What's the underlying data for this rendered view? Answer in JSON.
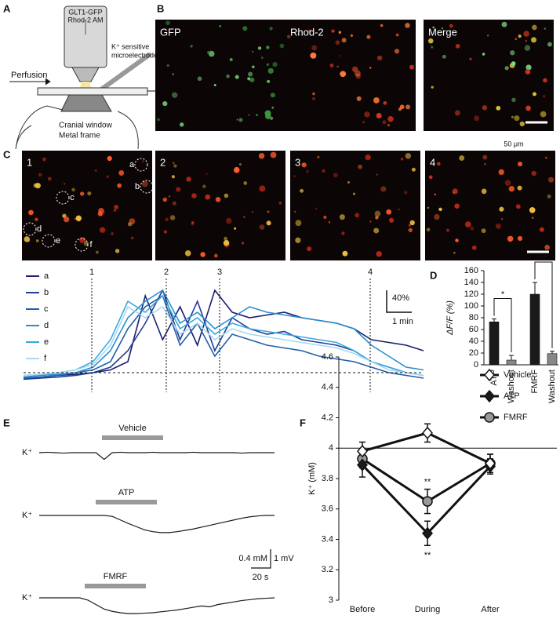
{
  "panel_labels": [
    "A",
    "B",
    "C",
    "D",
    "E",
    "F"
  ],
  "schematic": {
    "dyes": [
      "GLT1-GFP",
      "Rhod-2 AM"
    ],
    "electrode": [
      "K⁺ sensitive",
      "microelectrode"
    ],
    "perfusion": "Perfusion",
    "window": "Cranial window",
    "frame": "Metal frame"
  },
  "imaging": {
    "channels": [
      "GFP",
      "Rhod-2",
      "Merge"
    ],
    "scale": "50 μm",
    "frames": [
      "1",
      "2",
      "3",
      "4"
    ]
  },
  "chart_data": [
    {
      "type": "line",
      "series": [
        {
          "name": "a",
          "color": "#1a1f6e",
          "values": [
            -10,
            -8,
            -5,
            -3,
            0,
            5,
            20,
            140,
            60,
            120,
            50,
            150,
            110,
            100,
            105,
            110,
            100,
            95,
            90,
            80,
            60,
            55,
            50,
            40
          ]
        },
        {
          "name": "b",
          "color": "#243c96",
          "values": [
            -12,
            -10,
            -8,
            -5,
            0,
            10,
            40,
            90,
            150,
            60,
            130,
            40,
            100,
            80,
            70,
            75,
            60,
            55,
            50,
            40,
            20,
            10,
            0,
            -5
          ]
        },
        {
          "name": "c",
          "color": "#1f5fa8",
          "values": [
            -10,
            -8,
            -5,
            0,
            5,
            20,
            80,
            120,
            140,
            50,
            90,
            30,
            70,
            60,
            50,
            45,
            40,
            30,
            25,
            20,
            10,
            0,
            -5,
            -10
          ]
        },
        {
          "name": "d",
          "color": "#2a8fd0",
          "values": [
            -8,
            -5,
            -3,
            0,
            10,
            40,
            100,
            130,
            150,
            90,
            110,
            80,
            100,
            120,
            110,
            105,
            100,
            95,
            90,
            80,
            50,
            30,
            10,
            5
          ]
        },
        {
          "name": "e",
          "color": "#3aa8df",
          "values": [
            -5,
            -3,
            0,
            5,
            20,
            60,
            130,
            110,
            140,
            80,
            100,
            70,
            90,
            80,
            75,
            70,
            65,
            60,
            55,
            40,
            20,
            10,
            0,
            -5
          ]
        },
        {
          "name": "f",
          "color": "#a9d8f0",
          "values": [
            -5,
            -3,
            0,
            5,
            15,
            50,
            120,
            100,
            120,
            70,
            90,
            60,
            80,
            70,
            65,
            60,
            55,
            50,
            45,
            35,
            20,
            5,
            0,
            -5
          ]
        }
      ],
      "markers": [
        "1",
        "2",
        "3",
        "4"
      ],
      "scale_labels": [
        "40%",
        "1 min"
      ]
    },
    {
      "type": "bar",
      "categories": [
        "ATP",
        "Washout",
        "FMRF",
        "Washout"
      ],
      "values": [
        73,
        8,
        120,
        19
      ],
      "errors": [
        5,
        8,
        20,
        4
      ],
      "colors": [
        "#1a1a1a",
        "#888888",
        "#1a1a1a",
        "#888888"
      ],
      "ylabel": "ΔF/F (%)",
      "ylim": [
        0,
        160
      ],
      "yticks": [
        0,
        20,
        40,
        60,
        80,
        100,
        120,
        140,
        160
      ],
      "annotations": [
        "*",
        "**"
      ]
    },
    {
      "type": "line",
      "categories": [
        "Before",
        "During",
        "After"
      ],
      "series": [
        {
          "name": "Vehicle",
          "color": "#ffffff",
          "marker": "diamond",
          "values": [
            3.98,
            4.1,
            3.9
          ],
          "errors": [
            0.06,
            0.06,
            0.06
          ]
        },
        {
          "name": "ATP",
          "color": "#1a1a1a",
          "marker": "diamond",
          "values": [
            3.89,
            3.44,
            3.88
          ],
          "errors": [
            0.08,
            0.08,
            0.05
          ]
        },
        {
          "name": "FMRF",
          "color": "#999999",
          "marker": "circle",
          "values": [
            3.93,
            3.65,
            3.9
          ],
          "errors": [
            0.06,
            0.08,
            0.06
          ]
        }
      ],
      "ylabel": "K⁺ (mM)",
      "ylim": [
        3,
        4.6
      ],
      "yticks": [
        3,
        3.2,
        3.4,
        3.6,
        3.8,
        4,
        4.2,
        4.4,
        4.6
      ],
      "reference_line": 4,
      "annotations": [
        "**",
        "**"
      ],
      "legend": "upper right"
    },
    {
      "type": "line",
      "trace_label": "K⁺",
      "series": [
        {
          "name": "Vehicle",
          "color": "#1a1a1a",
          "values": [
            0,
            0.01,
            0,
            -0.01,
            0,
            0,
            0,
            0,
            -0.15,
            0,
            0.01,
            0,
            0,
            0,
            0.01,
            0,
            0,
            0,
            0,
            0.01,
            0,
            0,
            0,
            0,
            0,
            -0.01,
            0,
            0,
            0,
            0
          ]
        },
        {
          "name": "ATP",
          "color": "#1a1a1a",
          "values": [
            0,
            0,
            0,
            0,
            0,
            0,
            0,
            0,
            0,
            -0.02,
            -0.1,
            -0.18,
            -0.25,
            -0.32,
            -0.36,
            -0.38,
            -0.38,
            -0.36,
            -0.33,
            -0.3,
            -0.26,
            -0.22,
            -0.18,
            -0.14,
            -0.1,
            -0.06,
            -0.03,
            -0.01,
            0,
            0
          ]
        },
        {
          "name": "FMRF",
          "color": "#1a1a1a",
          "values": [
            0,
            0,
            0,
            0,
            0,
            0,
            -0.05,
            -0.15,
            -0.25,
            -0.3,
            -0.33,
            -0.35,
            -0.35,
            -0.34,
            -0.33,
            -0.31,
            -0.29,
            -0.27,
            -0.24,
            -0.21,
            -0.18,
            -0.2,
            -0.15,
            -0.12,
            -0.09,
            -0.06,
            -0.04,
            -0.02,
            -0.01,
            0
          ]
        }
      ],
      "scale_labels": [
        "0.4 mM",
        "1 mV",
        "20 s"
      ]
    }
  ]
}
